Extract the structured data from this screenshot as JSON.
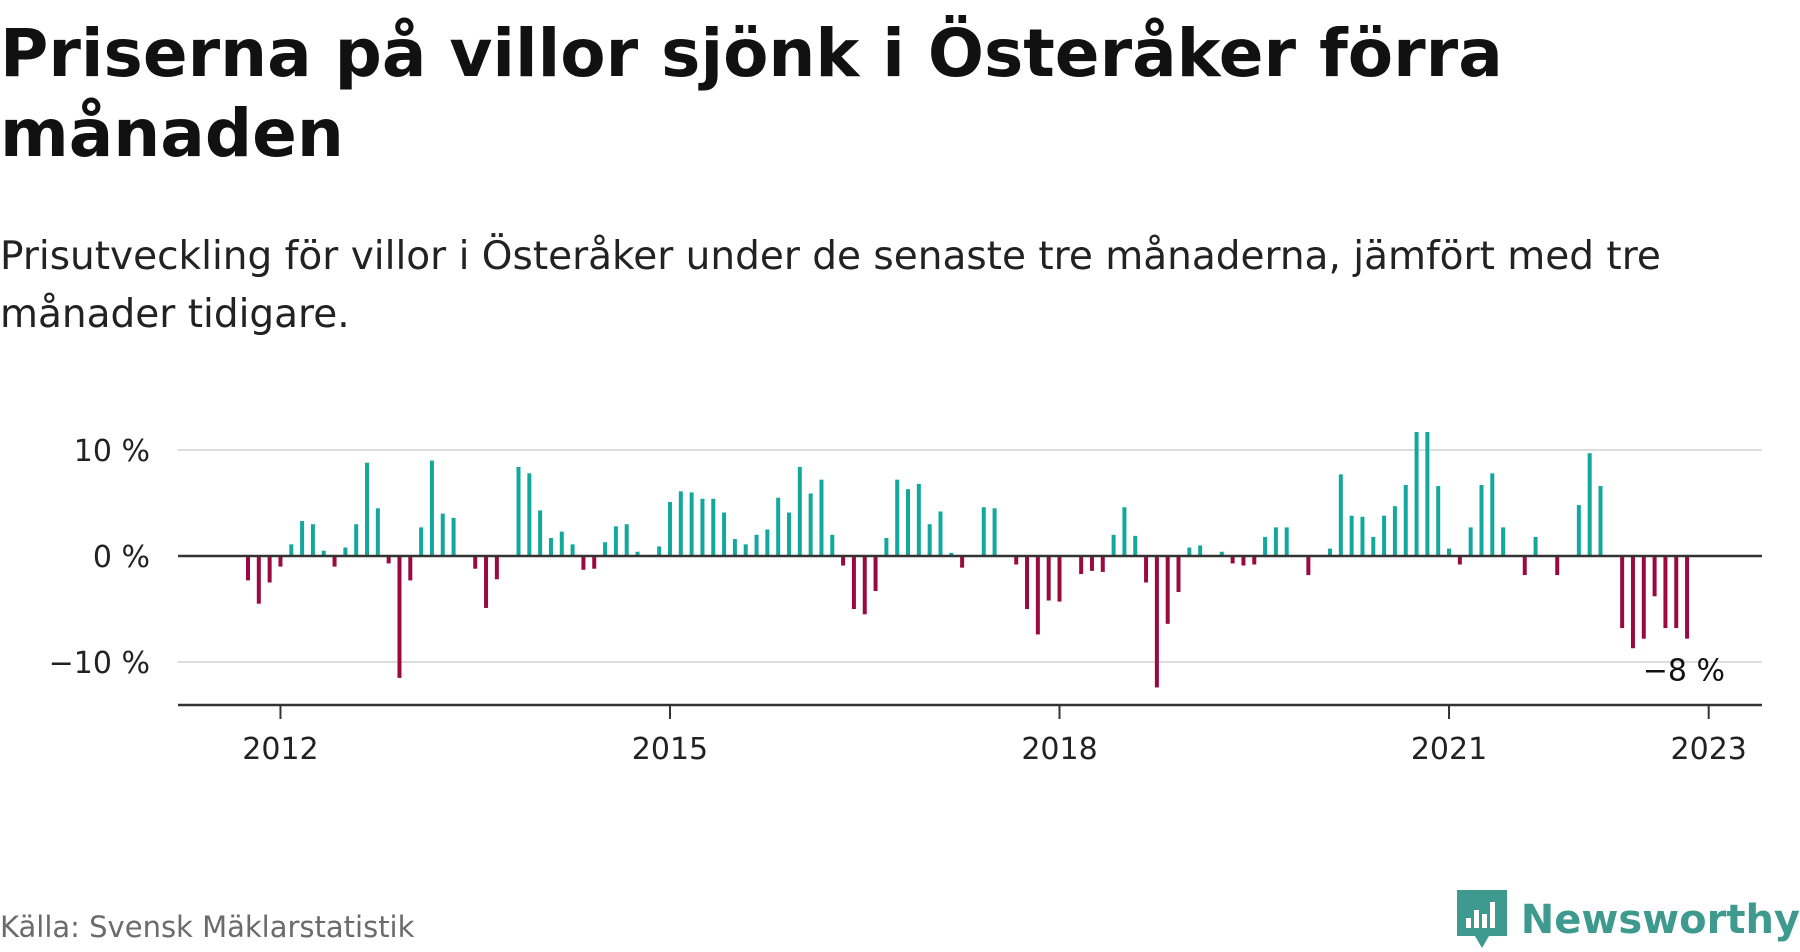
{
  "header": {
    "title": "Priserna på villor sjönk i Österåker förra månaden",
    "subtitle": "Prisutveckling för villor i Österåker under de senaste tre månaderna, jämfört med tre månader tidigare."
  },
  "footer": {
    "source": "Källa: Svensk Mäklarstatistik",
    "brand": "Newsworthy"
  },
  "colors": {
    "positive": "#13a89e",
    "negative": "#9b0a3e",
    "grid": "#dddddd",
    "axis": "#333333",
    "text": "#222222",
    "brand": "#3e9a8f"
  },
  "chart_data": {
    "type": "bar",
    "x_unit": "month",
    "start": "2011-10",
    "ylim": [
      -14,
      10.5
    ],
    "y_ticks": [
      {
        "value": 10,
        "label": "10 %"
      },
      {
        "value": 0,
        "label": "0 %"
      },
      {
        "value": -10,
        "label": "−10 %"
      }
    ],
    "x_ticks": [
      {
        "date": "2012-01",
        "label": "2012"
      },
      {
        "date": "2015-01",
        "label": "2015"
      },
      {
        "date": "2018-01",
        "label": "2018"
      },
      {
        "date": "2021-01",
        "label": "2021"
      },
      {
        "date": "2023-01",
        "label": "2023"
      }
    ],
    "annotation": {
      "label": "−8 %"
    },
    "values": [
      -2.3,
      -4.5,
      -2.5,
      -1.0,
      1.1,
      3.3,
      3.0,
      0.5,
      -1.0,
      0.8,
      3.0,
      8.8,
      4.5,
      -0.7,
      -11.5,
      -2.3,
      2.7,
      9.0,
      4.0,
      3.6,
      null,
      -1.2,
      -4.9,
      -2.2,
      null,
      8.4,
      7.8,
      4.3,
      1.7,
      2.3,
      1.1,
      -1.3,
      -1.2,
      1.3,
      2.8,
      3.0,
      0.4,
      null,
      0.9,
      5.1,
      6.1,
      6.0,
      5.4,
      5.4,
      4.1,
      1.6,
      1.1,
      2.0,
      2.5,
      5.5,
      4.1,
      8.4,
      5.9,
      7.2,
      2.0,
      -0.9,
      -5.0,
      -5.5,
      -3.3,
      1.7,
      7.2,
      6.3,
      6.8,
      3.0,
      4.2,
      0.3,
      -1.1,
      null,
      4.6,
      4.5,
      null,
      -0.8,
      -5.0,
      -7.4,
      -4.2,
      -4.3,
      null,
      -1.7,
      -1.4,
      -1.5,
      2.0,
      4.6,
      1.9,
      -2.5,
      -12.4,
      -6.4,
      -3.4,
      0.8,
      1.0,
      null,
      0.4,
      -0.7,
      -0.9,
      -0.8,
      1.8,
      2.7,
      2.7,
      null,
      -1.8,
      null,
      0.7,
      7.7,
      3.8,
      3.7,
      1.8,
      3.8,
      4.7,
      6.7,
      11.7,
      11.7,
      6.6,
      0.7,
      -0.8,
      2.7,
      6.7,
      7.8,
      2.7,
      null,
      -1.8,
      1.8,
      null,
      -1.8,
      null,
      4.8,
      9.7,
      6.6,
      null,
      -6.8,
      -8.7,
      -7.8,
      -3.8,
      -6.8,
      -6.8,
      -7.8
    ]
  }
}
